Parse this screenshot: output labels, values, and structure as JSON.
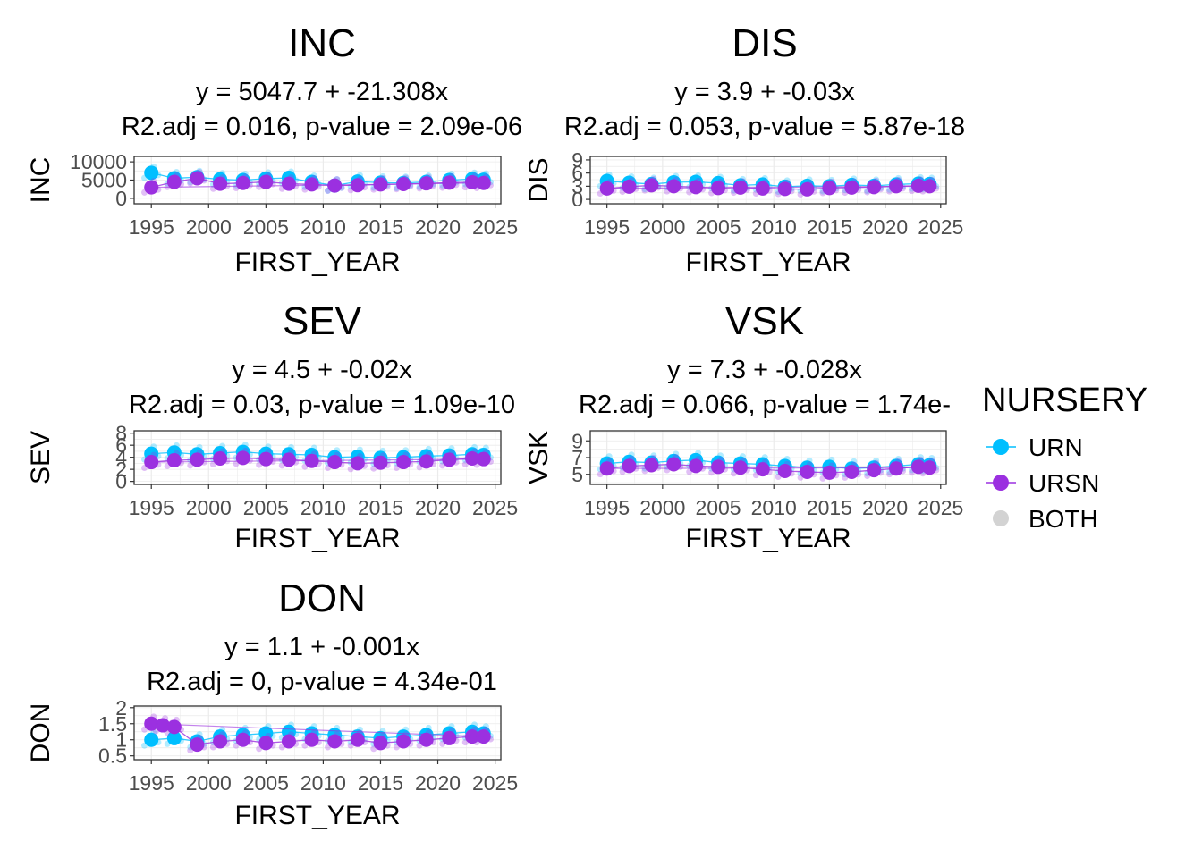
{
  "legend": {
    "title": "NURSERY",
    "entries": [
      {
        "label": "URN",
        "color": "#00bfff"
      },
      {
        "label": "URSN",
        "color": "#9b30e0"
      },
      {
        "label": "BOTH",
        "color": "#d3d3d3"
      }
    ]
  },
  "chart_data": [
    {
      "type": "scatter",
      "title": "INC",
      "equation": "y = 5047.7 + -21.308x",
      "stats": "R2.adj = 0.016, p-value = 2.09e-06",
      "xlabel": "FIRST_YEAR",
      "ylabel": "INC",
      "xlim": [
        1993.5,
        2025.5
      ],
      "ylim": [
        -1500,
        11500
      ],
      "xticks": [
        1995,
        2000,
        2005,
        2010,
        2015,
        2020,
        2025
      ],
      "yticks": [
        0,
        5000,
        10000
      ],
      "intercept": 5047.7,
      "slope": -21.308,
      "series": [
        {
          "name": "URN",
          "x": [
            1995,
            1997,
            1999,
            2001,
            2003,
            2005,
            2007,
            2009,
            2011,
            2013,
            2015,
            2017,
            2019,
            2021,
            2023,
            2024
          ],
          "y": [
            7000,
            5500,
            5800,
            5200,
            5000,
            5400,
            5600,
            4500,
            3500,
            4600,
            4300,
            4200,
            4500,
            5000,
            5300,
            5100
          ]
        },
        {
          "name": "URSN",
          "x": [
            1995,
            1997,
            1999,
            2001,
            2003,
            2005,
            2007,
            2009,
            2011,
            2013,
            2015,
            2017,
            2019,
            2021,
            2023,
            2024
          ],
          "y": [
            3000,
            4500,
            5500,
            4000,
            4200,
            4500,
            4000,
            3800,
            3500,
            3600,
            3800,
            3900,
            4100,
            4300,
            4400,
            4200
          ]
        }
      ]
    },
    {
      "type": "scatter",
      "title": "DIS",
      "equation": "y = 3.9 + -0.03x",
      "stats": "R2.adj = 0.053, p-value = 5.87e-18",
      "xlabel": "FIRST_YEAR",
      "ylabel": "DIS",
      "xlim": [
        1993.5,
        2025.5
      ],
      "ylim": [
        -1,
        9.8
      ],
      "xticks": [
        1995,
        2000,
        2005,
        2010,
        2015,
        2020,
        2025
      ],
      "yticks": [
        0,
        3,
        6,
        9
      ],
      "intercept": 3.9,
      "slope": -0.03,
      "series": [
        {
          "name": "URN",
          "x": [
            1995,
            1997,
            1999,
            2001,
            2003,
            2005,
            2007,
            2009,
            2011,
            2013,
            2015,
            2017,
            2019,
            2021,
            2023,
            2024
          ],
          "y": [
            4.2,
            3.8,
            3.5,
            3.9,
            4.0,
            3.7,
            3.2,
            3.4,
            2.9,
            3.1,
            3.0,
            3.3,
            3.1,
            3.4,
            3.6,
            3.5
          ]
        },
        {
          "name": "URSN",
          "x": [
            1995,
            1997,
            1999,
            2001,
            2003,
            2005,
            2007,
            2009,
            2011,
            2013,
            2015,
            2017,
            2019,
            2021,
            2023,
            2024
          ],
          "y": [
            2.5,
            2.9,
            3.2,
            3.0,
            2.8,
            2.6,
            2.7,
            2.5,
            2.4,
            2.3,
            2.6,
            2.7,
            2.8,
            3.0,
            3.1,
            3.0
          ]
        }
      ]
    },
    {
      "type": "scatter",
      "title": "SEV",
      "equation": "y = 4.5 + -0.02x",
      "stats": "R2.adj = 0.03, p-value = 1.09e-10",
      "xlabel": "FIRST_YEAR",
      "ylabel": "SEV",
      "xlim": [
        1993.5,
        2025.5
      ],
      "ylim": [
        -0.5,
        8.4
      ],
      "xticks": [
        1995,
        2000,
        2005,
        2010,
        2015,
        2020,
        2025
      ],
      "yticks": [
        0,
        2,
        4,
        6,
        8
      ],
      "intercept": 4.5,
      "slope": -0.02,
      "series": [
        {
          "name": "URN",
          "x": [
            1995,
            1997,
            1999,
            2001,
            2003,
            2005,
            2007,
            2009,
            2011,
            2013,
            2015,
            2017,
            2019,
            2021,
            2023,
            2024
          ],
          "y": [
            4.6,
            4.8,
            4.5,
            4.7,
            4.9,
            4.6,
            4.5,
            4.4,
            4.0,
            4.1,
            3.9,
            4.0,
            4.2,
            4.3,
            4.5,
            4.4
          ]
        },
        {
          "name": "URSN",
          "x": [
            1995,
            1997,
            1999,
            2001,
            2003,
            2005,
            2007,
            2009,
            2011,
            2013,
            2015,
            2017,
            2019,
            2021,
            2023,
            2024
          ],
          "y": [
            3.2,
            3.5,
            3.6,
            3.8,
            3.9,
            3.7,
            3.6,
            3.4,
            3.2,
            3.0,
            3.1,
            3.2,
            3.3,
            3.6,
            3.8,
            3.7
          ]
        }
      ]
    },
    {
      "type": "scatter",
      "title": "VSK",
      "equation": "y = 7.3 + -0.028x",
      "stats": "R2.adj = 0.066, p-value = 1.74e-",
      "xlabel": "FIRST_YEAR",
      "ylabel": "VSK",
      "xlim": [
        1993.5,
        2025.5
      ],
      "ylim": [
        3.8,
        10.2
      ],
      "xticks": [
        1995,
        2000,
        2005,
        2010,
        2015,
        2020,
        2025
      ],
      "yticks": [
        5,
        7,
        9
      ],
      "intercept": 7.3,
      "slope": -0.028,
      "series": [
        {
          "name": "URN",
          "x": [
            1995,
            1997,
            1999,
            2001,
            2003,
            2005,
            2007,
            2009,
            2011,
            2013,
            2015,
            2017,
            2019,
            2021,
            2023,
            2024
          ],
          "y": [
            6.3,
            6.5,
            6.4,
            6.6,
            6.7,
            6.4,
            6.3,
            6.2,
            6.0,
            5.8,
            5.9,
            5.7,
            5.8,
            6.0,
            6.2,
            6.1
          ]
        },
        {
          "name": "URSN",
          "x": [
            1995,
            1997,
            1999,
            2001,
            2003,
            2005,
            2007,
            2009,
            2011,
            2013,
            2015,
            2017,
            2019,
            2021,
            2023,
            2024
          ],
          "y": [
            5.7,
            6.0,
            6.1,
            6.2,
            6.0,
            5.9,
            5.8,
            5.6,
            5.4,
            5.3,
            5.2,
            5.3,
            5.5,
            5.7,
            5.9,
            5.8
          ]
        }
      ]
    },
    {
      "type": "scatter",
      "title": "DON",
      "equation": "y = 1.1 + -0.001x",
      "stats": "R2.adj = 0, p-value = 4.34e-01",
      "xlabel": "FIRST_YEAR",
      "ylabel": "DON",
      "xlim": [
        1993.5,
        2025.5
      ],
      "ylim": [
        0.38,
        2.05
      ],
      "xticks": [
        1995,
        2000,
        2005,
        2010,
        2015,
        2020,
        2025
      ],
      "yticks": [
        0.5,
        1.0,
        1.5,
        2.0
      ],
      "intercept": 1.1,
      "slope": -0.001,
      "series": [
        {
          "name": "URN",
          "x": [
            1995,
            1997,
            1999,
            2001,
            2003,
            2005,
            2007,
            2009,
            2011,
            2013,
            2015,
            2017,
            2019,
            2021,
            2023,
            2024
          ],
          "y": [
            1.0,
            1.05,
            0.95,
            1.1,
            1.15,
            1.2,
            1.25,
            1.2,
            1.15,
            1.1,
            1.05,
            1.1,
            1.15,
            1.2,
            1.25,
            1.2
          ]
        },
        {
          "name": "URSN",
          "x": [
            1995,
            1996,
            1997,
            1999,
            2001,
            2003,
            2005,
            2007,
            2009,
            2011,
            2013,
            2015,
            2017,
            2019,
            2021,
            2023,
            2024
          ],
          "y": [
            1.5,
            1.45,
            1.4,
            0.85,
            0.95,
            1.0,
            0.9,
            0.95,
            1.0,
            0.95,
            1.0,
            0.9,
            0.95,
            1.0,
            1.05,
            1.1,
            1.1
          ]
        }
      ]
    }
  ]
}
